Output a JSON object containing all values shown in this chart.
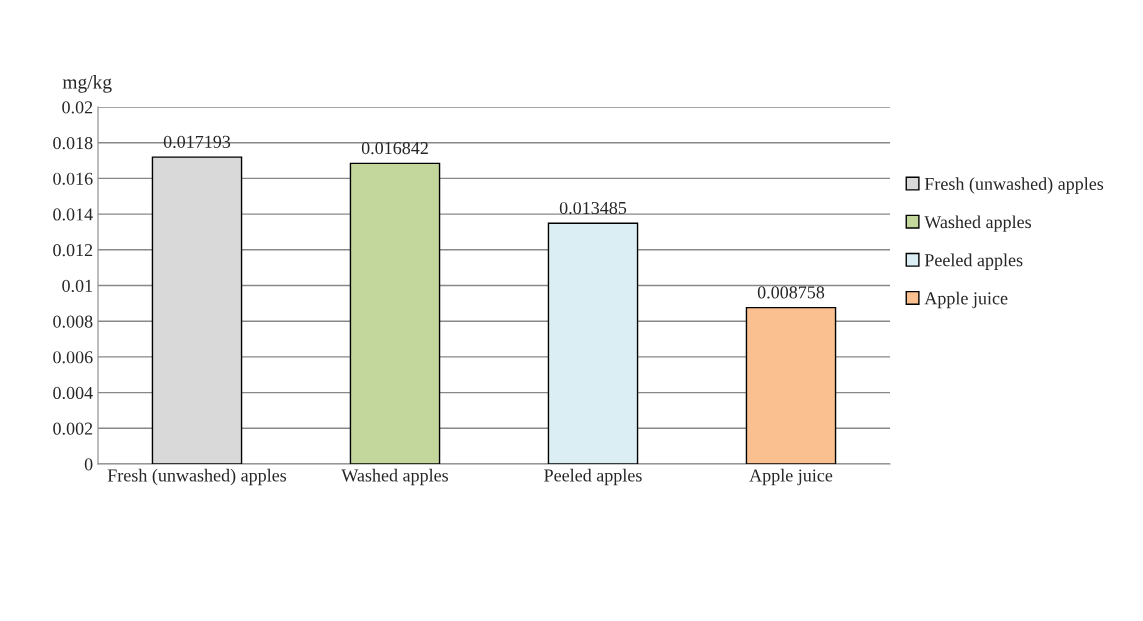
{
  "chart_data": {
    "type": "bar",
    "categories": [
      "Fresh (unwashed) apples",
      "Washed apples",
      "Peeled apples",
      "Apple juice"
    ],
    "series": [
      {
        "name": "Fresh (unwashed) apples",
        "color": "#d9d9d9",
        "values": [
          0.017193,
          null,
          null,
          null
        ]
      },
      {
        "name": "Washed apples",
        "color": "#c3d69b",
        "values": [
          null,
          0.016842,
          null,
          null
        ]
      },
      {
        "name": "Peeled apples",
        "color": "#dbeef4",
        "values": [
          null,
          null,
          0.013485,
          null
        ]
      },
      {
        "name": "Apple juice",
        "color": "#fac090",
        "values": [
          null,
          null,
          null,
          0.008758
        ]
      }
    ],
    "ylabel": "mg/kg",
    "ylim": [
      0,
      0.02
    ],
    "yticks": [
      0,
      0.002,
      0.004,
      0.006,
      0.008,
      0.01,
      0.012,
      0.014,
      0.016,
      0.018,
      0.02
    ],
    "grid": "y",
    "legend": "right",
    "data_labels": true
  }
}
